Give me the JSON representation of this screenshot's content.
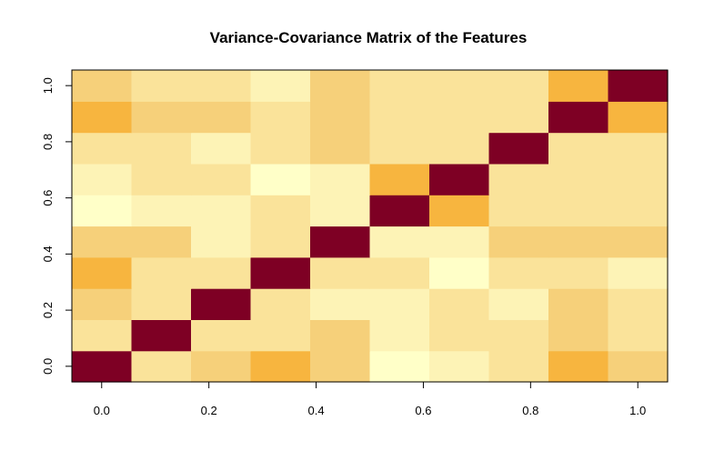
{
  "chart_data": {
    "type": "heatmap",
    "title": "Variance-Covariance Matrix of the Features",
    "xlabel": "",
    "ylabel": "",
    "xlim": [
      -0.0556,
      1.0556
    ],
    "ylim": [
      -0.0556,
      1.0556
    ],
    "x_ticks": [
      0.0,
      0.2,
      0.4,
      0.6,
      0.8,
      1.0
    ],
    "x_tick_labels": [
      "0.0",
      "0.2",
      "0.4",
      "0.6",
      "0.8",
      "1.0"
    ],
    "y_ticks": [
      0.0,
      0.2,
      0.4,
      0.6,
      0.8,
      1.0
    ],
    "y_tick_labels": [
      "0.0",
      "0.2",
      "0.4",
      "0.6",
      "0.8",
      "1.0"
    ],
    "n_rows": 10,
    "n_cols": 10,
    "grid": false,
    "legend": "none",
    "palette": [
      "#FFFFC8",
      "#FDF3B6",
      "#FAE39A",
      "#F6D07A",
      "#F7B53F",
      "#7E0024"
    ],
    "matrix": [
      [
        5,
        2,
        3,
        4,
        3,
        0,
        1,
        2,
        4,
        3
      ],
      [
        2,
        5,
        2,
        2,
        3,
        1,
        2,
        2,
        3,
        2
      ],
      [
        3,
        2,
        5,
        2,
        1,
        1,
        2,
        1,
        3,
        2
      ],
      [
        4,
        2,
        2,
        5,
        2,
        2,
        0,
        2,
        2,
        1
      ],
      [
        3,
        3,
        1,
        2,
        5,
        1,
        1,
        3,
        3,
        3
      ],
      [
        0,
        1,
        1,
        2,
        1,
        5,
        4,
        2,
        2,
        2
      ],
      [
        1,
        2,
        2,
        0,
        1,
        4,
        5,
        2,
        2,
        2
      ],
      [
        2,
        2,
        1,
        2,
        3,
        2,
        2,
        5,
        2,
        2
      ],
      [
        4,
        3,
        3,
        2,
        3,
        2,
        2,
        2,
        5,
        4
      ],
      [
        3,
        2,
        2,
        1,
        3,
        2,
        2,
        2,
        4,
        5
      ]
    ]
  }
}
